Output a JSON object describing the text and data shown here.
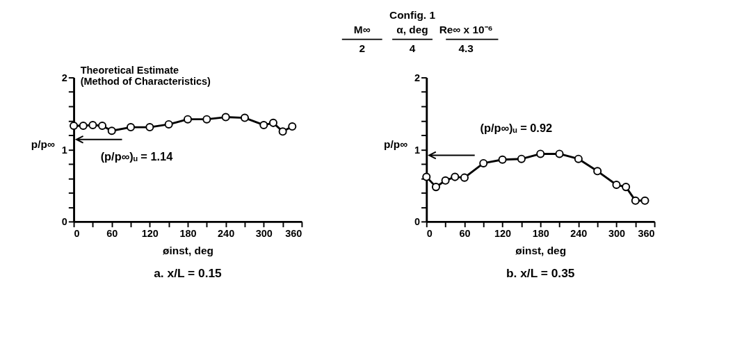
{
  "chart_data": [
    {
      "type": "line",
      "title": "a. x/L = 0.15",
      "xlabel": "øinst, deg",
      "ylabel": "p/p∞",
      "annotations": [
        "Config. 1",
        "M∞",
        "α, deg",
        "Re∞ x 10⁻⁶",
        "2",
        "4",
        "4.3",
        "Theoretical Estimate\n(Method of Characteristics)"
      ],
      "x": [
        0,
        15,
        30,
        45,
        60,
        90,
        120,
        150,
        180,
        210,
        240,
        270,
        300,
        315,
        330,
        345
      ],
      "series": [
        {
          "color": "#000000",
          "values": [
            1.33,
            1.33,
            1.34,
            1.33,
            1.26,
            1.31,
            1.31,
            1.35,
            1.42,
            1.42,
            1.45,
            1.44,
            1.34,
            1.37,
            1.25,
            1.32
          ]
        }
      ],
      "xlim": [
        0,
        360
      ],
      "ylim": [
        0,
        2
      ],
      "xticks": [
        0,
        {
          "value": 30,
          "label": null
        },
        60,
        {
          "value": 90,
          "label": null
        },
        120,
        {
          "value": 150,
          "label": null
        },
        180,
        {
          "value": 210,
          "label": null
        },
        240,
        {
          "value": 270,
          "label": null
        },
        300,
        {
          "value": 330,
          "label": null
        },
        360
      ],
      "yticks": [
        0,
        {
          "value": 0.2,
          "label": null
        },
        {
          "value": 0.4,
          "label": null
        },
        {
          "value": 0.6,
          "label": null
        },
        {
          "value": 0.8,
          "label": null
        },
        1,
        {
          "value": 1.2,
          "label": null
        },
        {
          "value": 1.4,
          "label": null
        },
        {
          "value": 1.6,
          "label": null
        },
        {
          "value": 1.8,
          "label": null
        },
        2
      ],
      "ref_lines": [
        {
          "axis": "y",
          "value": 1.14,
          "label": "(p/p∞)ᵤ = 1.14"
        }
      ],
      "marker": "circle",
      "line_style": "solid",
      "grid": false,
      "legend": false
    },
    {
      "type": "line",
      "title": "b. x/L = 0.35",
      "xlabel": "øinst, deg",
      "ylabel": "p/p∞",
      "x": [
        0,
        15,
        30,
        45,
        60,
        90,
        120,
        150,
        180,
        210,
        240,
        270,
        300,
        315,
        330,
        345
      ],
      "series": [
        {
          "color": "#000000",
          "values": [
            0.62,
            0.48,
            0.57,
            0.62,
            0.61,
            0.81,
            0.86,
            0.87,
            0.94,
            0.94,
            0.87,
            0.7,
            0.51,
            0.48,
            0.29,
            0.29
          ]
        }
      ],
      "xlim": [
        0,
        360
      ],
      "ylim": [
        0,
        2
      ],
      "xticks": [
        0,
        {
          "value": 30,
          "label": null
        },
        60,
        {
          "value": 90,
          "label": null
        },
        120,
        {
          "value": 150,
          "label": null
        },
        180,
        {
          "value": 210,
          "label": null
        },
        240,
        {
          "value": 270,
          "label": null
        },
        300,
        {
          "value": 330,
          "label": null
        },
        360
      ],
      "yticks": [
        0,
        {
          "value": 0.2,
          "label": null
        },
        {
          "value": 0.4,
          "label": null
        },
        {
          "value": 0.6,
          "label": null
        },
        {
          "value": 0.8,
          "label": null
        },
        1,
        {
          "value": 1.2,
          "label": null
        },
        {
          "value": 1.4,
          "label": null
        },
        {
          "value": 1.6,
          "label": null
        },
        {
          "value": 1.8,
          "label": null
        },
        2
      ],
      "ref_lines": [
        {
          "axis": "y",
          "value": 0.92,
          "label": "(p/p∞)ᵤ = 0.92"
        }
      ],
      "marker": "circle",
      "line_style": "solid",
      "grid": false,
      "legend": false
    }
  ]
}
